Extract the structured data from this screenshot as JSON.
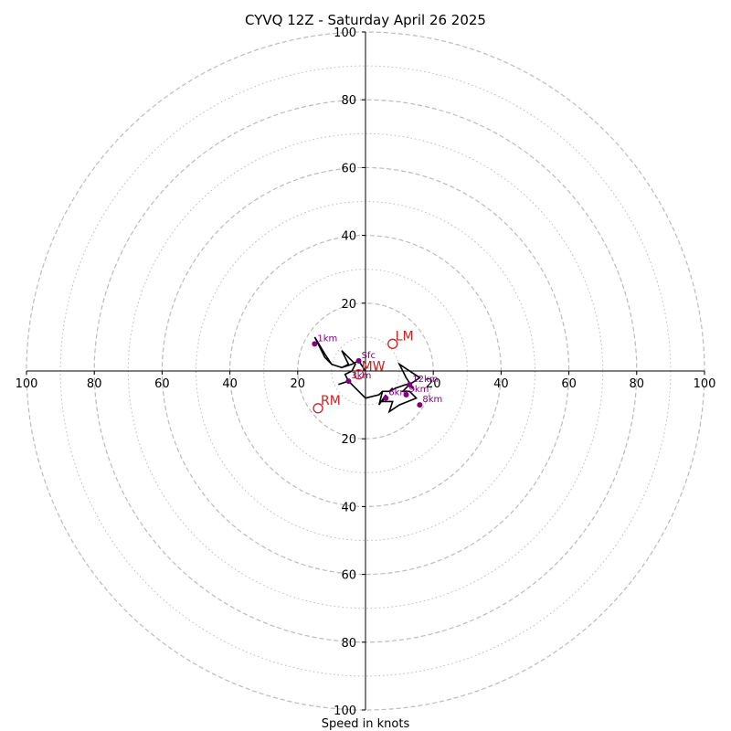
{
  "chart_data": {
    "type": "scatter",
    "subtype": "hodograph",
    "title": "CYVQ 12Z - Saturday April 26 2025",
    "xlabel": "Speed in knots",
    "ylabel": "",
    "unit": "knots",
    "ring_max": 100,
    "rings_labeled": [
      20,
      40,
      60,
      80,
      100
    ],
    "rings_dashed": [
      20,
      40,
      60,
      80,
      100
    ],
    "rings_dotted": [
      10,
      30,
      50,
      70,
      90
    ],
    "x_tick_labels": [
      "100",
      "80",
      "60",
      "40",
      "20",
      "20",
      "40",
      "60",
      "80",
      "100"
    ],
    "y_tick_labels": [
      "100",
      "80",
      "60",
      "40",
      "20",
      "20",
      "40",
      "60",
      "80",
      "100"
    ],
    "x_tick_values": [
      -100,
      -80,
      -60,
      -40,
      -20,
      20,
      40,
      60,
      80,
      100
    ],
    "y_tick_values": [
      100,
      80,
      60,
      40,
      20,
      -20,
      -40,
      -60,
      -80,
      -100
    ],
    "grid": true,
    "colors": {
      "trace": "#000000",
      "height_point": "#800080",
      "motion_marker": "#cc2222",
      "grid": "#bbbbbb",
      "axes": "#000000"
    },
    "trace": [
      [
        0,
        0
      ],
      [
        -2,
        3
      ],
      [
        -4,
        2
      ],
      [
        -7,
        1
      ],
      [
        -10,
        2
      ],
      [
        -12,
        5
      ],
      [
        -15,
        10
      ],
      [
        -14,
        8
      ],
      [
        -13,
        6
      ],
      [
        -12,
        4
      ],
      [
        -10,
        2
      ],
      [
        -7,
        1
      ],
      [
        -5,
        2
      ],
      [
        -7,
        6
      ],
      [
        -4,
        3
      ],
      [
        -3,
        2
      ],
      [
        -4,
        0
      ],
      [
        -6,
        -1
      ],
      [
        -5,
        -3
      ],
      [
        -8,
        -4
      ],
      [
        -5,
        -3
      ],
      [
        -2,
        -6
      ],
      [
        0,
        -8
      ],
      [
        4,
        -7
      ],
      [
        5,
        -6
      ],
      [
        7,
        -6
      ],
      [
        9,
        -5
      ],
      [
        12,
        -4
      ],
      [
        14,
        -5
      ],
      [
        12,
        -2
      ],
      [
        10,
        2
      ],
      [
        16,
        -2
      ],
      [
        13,
        -4
      ],
      [
        11,
        -6
      ],
      [
        13,
        -6
      ],
      [
        15,
        -8
      ],
      [
        10,
        -10
      ],
      [
        7,
        -12
      ],
      [
        8,
        -9
      ],
      [
        5,
        -9
      ],
      [
        6,
        -7
      ],
      [
        4,
        -10
      ],
      [
        5,
        -6
      ],
      [
        7,
        -6
      ],
      [
        8,
        -5
      ]
    ],
    "height_points": [
      {
        "label": "Sfc",
        "u": -2,
        "v": 3
      },
      {
        "label": "1km",
        "u": -15,
        "v": 8
      },
      {
        "label": "3km",
        "u": -5,
        "v": -3
      },
      {
        "label": "6km",
        "u": 6,
        "v": -8
      },
      {
        "label": "9km",
        "u": 12,
        "v": -7
      },
      {
        "label": "8km",
        "u": 16,
        "v": -10
      },
      {
        "label": "12km",
        "u": 13,
        "v": -4
      }
    ],
    "motion_markers": [
      {
        "label": "LM",
        "u": 8,
        "v": 8
      },
      {
        "label": "RM",
        "u": -14,
        "v": -11
      },
      {
        "label": "MW",
        "u": -2,
        "v": -1
      }
    ]
  }
}
